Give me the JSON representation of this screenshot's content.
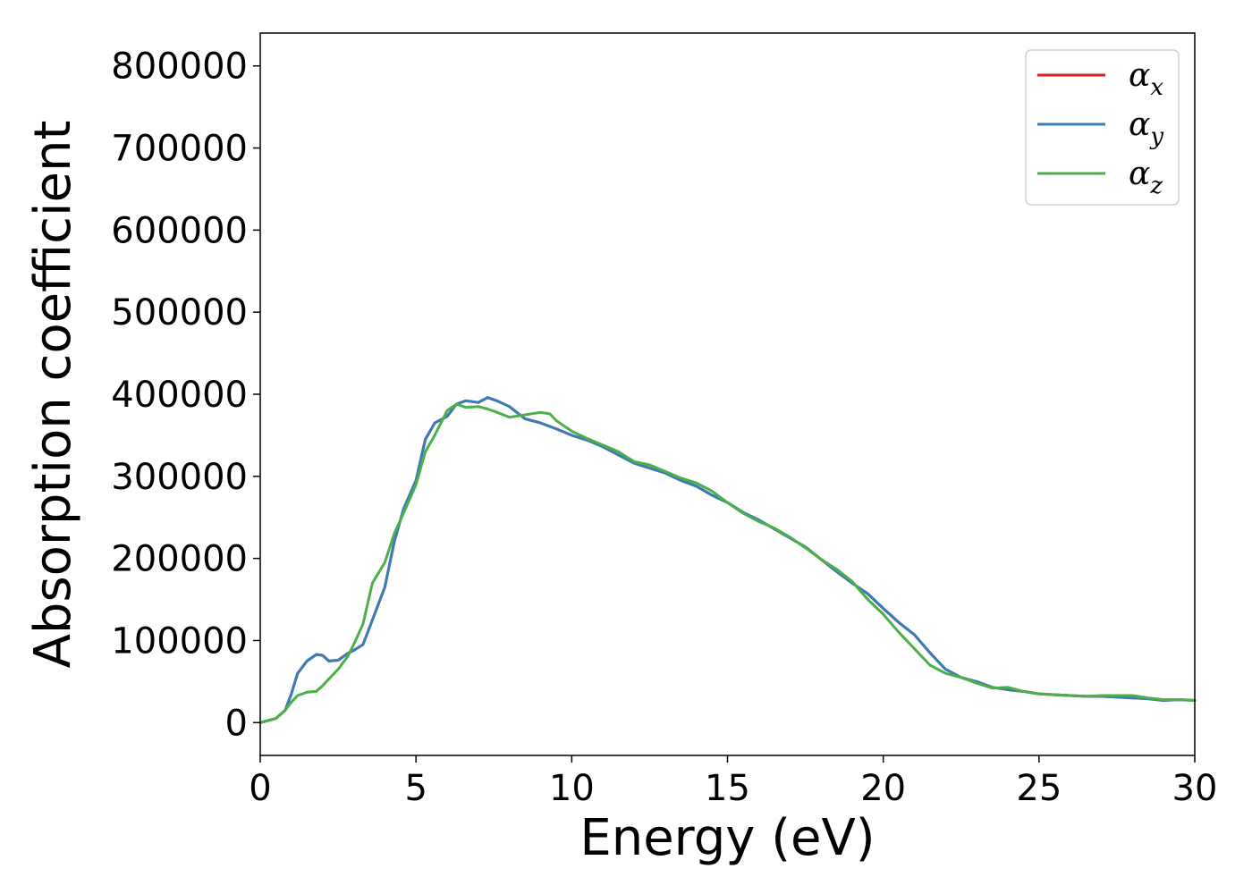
{
  "chart_data": {
    "type": "line",
    "title": "",
    "xlabel": "Energy (eV)",
    "ylabel": "Absorption coefficient",
    "xlim": [
      0,
      30
    ],
    "ylim": [
      -40000,
      840000
    ],
    "xticks": [
      0,
      5,
      10,
      15,
      20,
      25,
      30
    ],
    "yticks": [
      0,
      100000,
      200000,
      300000,
      400000,
      500000,
      600000,
      700000,
      800000
    ],
    "grid": false,
    "legend": "top-right",
    "series": [
      {
        "name": "α",
        "sub": "x",
        "color": "#e41a1c",
        "x": [
          0,
          0.5,
          0.8,
          1.0,
          1.2,
          1.5,
          1.8,
          2.0,
          2.2,
          2.5,
          2.8,
          3.0,
          3.3,
          3.6,
          4.0,
          4.3,
          4.6,
          5.0,
          5.3,
          5.6,
          6.0,
          6.3,
          6.6,
          7.0,
          7.3,
          7.6,
          8.0,
          8.5,
          9.0,
          9.5,
          10.0,
          10.5,
          11.0,
          11.5,
          12.0,
          12.5,
          13.0,
          13.5,
          14.0,
          14.5,
          15.0,
          15.5,
          16.0,
          16.5,
          17.0,
          17.5,
          18.0,
          18.5,
          19.0,
          19.5,
          20.0,
          20.5,
          21.0,
          21.5,
          22.0,
          22.5,
          23.0,
          23.5,
          24.0,
          24.5,
          25.0,
          25.5,
          26.0,
          26.5,
          27.0,
          27.5,
          28.0,
          28.5,
          29.0,
          29.5,
          30.0
        ],
        "y": [
          0,
          5000,
          15000,
          35000,
          60000,
          75000,
          83000,
          82000,
          75000,
          76000,
          84000,
          88000,
          95000,
          125000,
          165000,
          220000,
          260000,
          295000,
          345000,
          365000,
          373000,
          388000,
          392000,
          390000,
          396000,
          392000,
          385000,
          370000,
          365000,
          358000,
          350000,
          344000,
          336000,
          326000,
          316000,
          310000,
          304000,
          295000,
          288000,
          277000,
          268000,
          256000,
          247000,
          236000,
          225000,
          214000,
          199000,
          184000,
          170000,
          157000,
          139000,
          122000,
          107000,
          85000,
          65000,
          55000,
          50000,
          43000,
          40000,
          38000,
          35000,
          34000,
          33000,
          32000,
          32000,
          31000,
          30000,
          29000,
          27000,
          28000,
          27000
        ]
      },
      {
        "name": "α",
        "sub": "y",
        "color": "#377eb8",
        "x": [
          0,
          0.5,
          0.8,
          1.0,
          1.2,
          1.5,
          1.8,
          2.0,
          2.2,
          2.5,
          2.8,
          3.0,
          3.3,
          3.6,
          4.0,
          4.3,
          4.6,
          5.0,
          5.3,
          5.6,
          6.0,
          6.3,
          6.6,
          7.0,
          7.3,
          7.6,
          8.0,
          8.5,
          9.0,
          9.5,
          10.0,
          10.5,
          11.0,
          11.5,
          12.0,
          12.5,
          13.0,
          13.5,
          14.0,
          14.5,
          15.0,
          15.5,
          16.0,
          16.5,
          17.0,
          17.5,
          18.0,
          18.5,
          19.0,
          19.5,
          20.0,
          20.5,
          21.0,
          21.5,
          22.0,
          22.5,
          23.0,
          23.5,
          24.0,
          24.5,
          25.0,
          25.5,
          26.0,
          26.5,
          27.0,
          27.5,
          28.0,
          28.5,
          29.0,
          29.5,
          30.0
        ],
        "y": [
          0,
          5000,
          15000,
          35000,
          60000,
          75000,
          83000,
          82000,
          75000,
          76000,
          84000,
          88000,
          95000,
          125000,
          165000,
          220000,
          260000,
          295000,
          345000,
          365000,
          373000,
          388000,
          392000,
          390000,
          396000,
          392000,
          385000,
          370000,
          365000,
          358000,
          350000,
          344000,
          336000,
          326000,
          316000,
          310000,
          304000,
          295000,
          288000,
          277000,
          268000,
          256000,
          247000,
          236000,
          225000,
          214000,
          199000,
          184000,
          170000,
          157000,
          139000,
          122000,
          107000,
          85000,
          65000,
          55000,
          50000,
          43000,
          40000,
          38000,
          35000,
          34000,
          33000,
          32000,
          32000,
          31000,
          30000,
          29000,
          27000,
          28000,
          27000
        ]
      },
      {
        "name": "α",
        "sub": "z",
        "color": "#4daf4a",
        "x": [
          0,
          0.5,
          0.8,
          1.0,
          1.2,
          1.5,
          1.8,
          2.0,
          2.2,
          2.5,
          2.8,
          3.0,
          3.3,
          3.6,
          4.0,
          4.3,
          4.6,
          5.0,
          5.3,
          5.6,
          6.0,
          6.3,
          6.6,
          7.0,
          7.3,
          7.6,
          8.0,
          8.5,
          9.0,
          9.3,
          9.5,
          10.0,
          10.5,
          11.0,
          11.5,
          12.0,
          12.5,
          13.0,
          13.5,
          14.0,
          14.5,
          15.0,
          15.5,
          16.0,
          16.5,
          17.0,
          17.5,
          18.0,
          18.5,
          19.0,
          19.5,
          20.0,
          20.5,
          21.0,
          21.5,
          22.0,
          22.5,
          23.0,
          23.5,
          24.0,
          24.5,
          25.0,
          25.5,
          26.0,
          26.5,
          27.0,
          27.5,
          28.0,
          28.5,
          29.0,
          29.5,
          30.0
        ],
        "y": [
          0,
          5000,
          15000,
          25000,
          33000,
          37000,
          38000,
          45000,
          53000,
          65000,
          80000,
          95000,
          120000,
          170000,
          195000,
          230000,
          255000,
          290000,
          330000,
          350000,
          380000,
          388000,
          384000,
          385000,
          382000,
          378000,
          372000,
          375000,
          378000,
          376000,
          368000,
          355000,
          346000,
          338000,
          330000,
          318000,
          314000,
          306000,
          298000,
          292000,
          282000,
          268000,
          255000,
          245000,
          237000,
          226000,
          213000,
          199000,
          187000,
          172000,
          150000,
          132000,
          110000,
          90000,
          70000,
          60000,
          55000,
          48000,
          42000,
          43000,
          38000,
          35000,
          34000,
          33000,
          32000,
          33000,
          33000,
          33000,
          30000,
          28000,
          28000,
          27000
        ]
      }
    ]
  }
}
